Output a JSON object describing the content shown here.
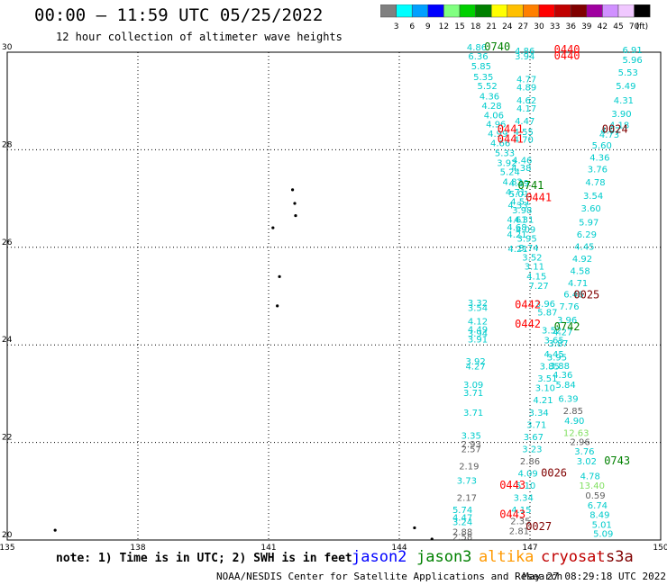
{
  "header": {
    "title": "00:00 – 11:59 UTC 05/25/2022",
    "subtitle": "12 hour collection of altimeter wave heights"
  },
  "colorbar": {
    "ticks": [
      "3",
      "6",
      "9",
      "12",
      "15",
      "18",
      "21",
      "24",
      "27",
      "30",
      "33",
      "36",
      "39",
      "42",
      "45",
      "70"
    ],
    "unit": "(ft)",
    "colors": [
      "#808080",
      "#00ffff",
      "#00a0ff",
      "#0000ff",
      "#80ff80",
      "#00d000",
      "#008000",
      "#ffff00",
      "#ffc000",
      "#ff8000",
      "#ff0000",
      "#c00000",
      "#800000",
      "#a000a0",
      "#d090ff",
      "#f0c8ff",
      "#000000"
    ]
  },
  "footer": {
    "note": "note:  1) Time is in UTC; 2) SWH is in feet",
    "legend": [
      {
        "name": "jason2",
        "color": "#0000ff"
      },
      {
        "name": "jason3",
        "color": "#008000"
      },
      {
        "name": "altika",
        "color": "#ff9900"
      },
      {
        "name": "cryosat",
        "color": "#c00000"
      },
      {
        "name": "s3a",
        "color": "#800000"
      }
    ],
    "credit": "NOAA/NESDIS Center for Satellite Applications and Research",
    "timestamp": "May 27 08:29:18 UTC 2022"
  },
  "chart_data": {
    "type": "scatter",
    "xlim": [
      135,
      150
    ],
    "ylim": [
      20,
      30
    ],
    "x_ticks": [
      "135",
      "138",
      "141",
      "144",
      "147",
      "150"
    ],
    "y_ticks": [
      "20",
      "22",
      "24",
      "26",
      "28",
      "30"
    ],
    "grid": true,
    "labels": [
      {
        "lon": 146.25,
        "lat": 30.04,
        "text": "0740",
        "c": "#008000"
      },
      {
        "lon": 147.85,
        "lat": 29.98,
        "text": "0440",
        "c": "#ff0000"
      },
      {
        "lon": 147.85,
        "lat": 29.85,
        "text": "0440",
        "c": "#ff0000"
      },
      {
        "lon": 146.55,
        "lat": 28.35,
        "text": "0441",
        "c": "#ff0000"
      },
      {
        "lon": 146.55,
        "lat": 28.15,
        "text": "0441",
        "c": "#ff0000"
      },
      {
        "lon": 148.95,
        "lat": 28.35,
        "text": "0024",
        "c": "#800000"
      },
      {
        "lon": 147.02,
        "lat": 27.2,
        "text": "0741",
        "c": "#008000"
      },
      {
        "lon": 147.2,
        "lat": 26.95,
        "text": "0441",
        "c": "#ff0000"
      },
      {
        "lon": 148.3,
        "lat": 24.95,
        "text": "0025",
        "c": "#800000"
      },
      {
        "lon": 146.95,
        "lat": 24.75,
        "text": "0442",
        "c": "#ff0000"
      },
      {
        "lon": 146.95,
        "lat": 24.35,
        "text": "0442",
        "c": "#ff0000"
      },
      {
        "lon": 147.85,
        "lat": 24.3,
        "text": "0742",
        "c": "#008000"
      },
      {
        "lon": 149.0,
        "lat": 21.55,
        "text": "0743",
        "c": "#008000"
      },
      {
        "lon": 147.55,
        "lat": 21.3,
        "text": "0026",
        "c": "#800000"
      },
      {
        "lon": 146.6,
        "lat": 21.05,
        "text": "0443",
        "c": "#ff0000"
      },
      {
        "lon": 146.6,
        "lat": 20.45,
        "text": "0443",
        "c": "#ff0000"
      },
      {
        "lon": 147.2,
        "lat": 20.2,
        "text": "0027",
        "c": "#800000"
      }
    ],
    "wave_heights": [
      {
        "lon": 145.78,
        "lat": 30.04,
        "v": "4.86",
        "c": "#00cccc"
      },
      {
        "lon": 145.81,
        "lat": 29.85,
        "v": "6.36",
        "c": "#00cccc"
      },
      {
        "lon": 145.88,
        "lat": 29.65,
        "v": "5.85",
        "c": "#00cccc"
      },
      {
        "lon": 145.93,
        "lat": 29.43,
        "v": "5.35",
        "c": "#00cccc"
      },
      {
        "lon": 146.02,
        "lat": 29.24,
        "v": "5.52",
        "c": "#00cccc"
      },
      {
        "lon": 146.07,
        "lat": 29.03,
        "v": "4.36",
        "c": "#00cccc"
      },
      {
        "lon": 146.12,
        "lat": 28.84,
        "v": "4.28",
        "c": "#00cccc"
      },
      {
        "lon": 146.17,
        "lat": 28.64,
        "v": "4.06",
        "c": "#00cccc"
      },
      {
        "lon": 146.22,
        "lat": 28.46,
        "v": "4.96",
        "c": "#00cccc"
      },
      {
        "lon": 146.26,
        "lat": 28.27,
        "v": "4.99",
        "c": "#00cccc"
      },
      {
        "lon": 146.32,
        "lat": 28.07,
        "v": "4.66",
        "c": "#00cccc"
      },
      {
        "lon": 146.42,
        "lat": 27.87,
        "v": "5.33",
        "c": "#00cccc"
      },
      {
        "lon": 146.47,
        "lat": 27.67,
        "v": "3.92",
        "c": "#00cccc"
      },
      {
        "lon": 146.54,
        "lat": 27.48,
        "v": "5.24",
        "c": "#00cccc"
      },
      {
        "lon": 146.6,
        "lat": 27.28,
        "v": "4.82",
        "c": "#00cccc"
      },
      {
        "lon": 146.67,
        "lat": 27.07,
        "v": "4.71",
        "c": "#00cccc"
      },
      {
        "lon": 146.78,
        "lat": 26.87,
        "v": "4.51",
        "c": "#00cccc"
      },
      {
        "lon": 146.82,
        "lat": 26.7,
        "v": "3.98",
        "c": "#00cccc"
      },
      {
        "lon": 146.86,
        "lat": 26.5,
        "v": "4.31",
        "c": "#00cccc"
      },
      {
        "lon": 146.9,
        "lat": 26.3,
        "v": "4.09",
        "c": "#00cccc"
      },
      {
        "lon": 146.93,
        "lat": 26.12,
        "v": "3.95",
        "c": "#00cccc"
      },
      {
        "lon": 146.97,
        "lat": 25.92,
        "v": "3.74",
        "c": "#00cccc"
      },
      {
        "lon": 147.05,
        "lat": 25.73,
        "v": "3.52",
        "c": "#00cccc"
      },
      {
        "lon": 147.1,
        "lat": 25.54,
        "v": "3.11",
        "c": "#00cccc"
      },
      {
        "lon": 147.15,
        "lat": 25.34,
        "v": "4.15",
        "c": "#00cccc"
      },
      {
        "lon": 147.2,
        "lat": 25.15,
        "v": "7.27",
        "c": "#00cccc"
      },
      {
        "lon": 147.35,
        "lat": 24.78,
        "v": "3.96",
        "c": "#00cccc"
      },
      {
        "lon": 147.4,
        "lat": 24.6,
        "v": "5.87",
        "c": "#00cccc"
      },
      {
        "lon": 147.5,
        "lat": 24.23,
        "v": "3.52",
        "c": "#00cccc"
      },
      {
        "lon": 147.55,
        "lat": 24.03,
        "v": "3.65",
        "c": "#00cccc"
      },
      {
        "lon": 147.62,
        "lat": 23.68,
        "v": "3.95",
        "c": "#00cccc"
      },
      {
        "lon": 147.68,
        "lat": 23.51,
        "v": "3.88",
        "c": "#00cccc"
      },
      {
        "lon": 147.75,
        "lat": 23.32,
        "v": "4.36",
        "c": "#00cccc"
      },
      {
        "lon": 147.82,
        "lat": 23.12,
        "v": "5.84",
        "c": "#00cccc"
      },
      {
        "lon": 147.88,
        "lat": 22.83,
        "v": "6.39",
        "c": "#00cccc"
      },
      {
        "lon": 147.99,
        "lat": 22.58,
        "v": "2.85",
        "c": "#606060"
      },
      {
        "lon": 148.02,
        "lat": 22.38,
        "v": "4.90",
        "c": "#00cccc"
      },
      {
        "lon": 148.06,
        "lat": 22.13,
        "v": "12.63",
        "c": "#80e060"
      },
      {
        "lon": 148.15,
        "lat": 21.95,
        "v": "2.96",
        "c": "#606060"
      },
      {
        "lon": 148.25,
        "lat": 21.75,
        "v": "3.76",
        "c": "#00cccc"
      },
      {
        "lon": 148.3,
        "lat": 21.55,
        "v": "3.02",
        "c": "#00cccc"
      },
      {
        "lon": 148.38,
        "lat": 21.25,
        "v": "4.78",
        "c": "#00cccc"
      },
      {
        "lon": 148.42,
        "lat": 21.05,
        "v": "13.40",
        "c": "#80e060"
      },
      {
        "lon": 148.5,
        "lat": 20.85,
        "v": "0.59",
        "c": "#606060"
      },
      {
        "lon": 148.55,
        "lat": 20.65,
        "v": "6.74",
        "c": "#00cccc"
      },
      {
        "lon": 148.6,
        "lat": 20.45,
        "v": "8.49",
        "c": "#00cccc"
      },
      {
        "lon": 148.65,
        "lat": 20.25,
        "v": "5.01",
        "c": "#00cccc"
      },
      {
        "lon": 148.68,
        "lat": 20.06,
        "v": "5.09",
        "c": "#00cccc"
      },
      {
        "lon": 149.35,
        "lat": 29.98,
        "v": "6.91",
        "c": "#00cccc"
      },
      {
        "lon": 149.35,
        "lat": 29.78,
        "v": "5.96",
        "c": "#00cccc"
      },
      {
        "lon": 149.25,
        "lat": 29.52,
        "v": "5.53",
        "c": "#00cccc"
      },
      {
        "lon": 149.2,
        "lat": 29.24,
        "v": "5.49",
        "c": "#00cccc"
      },
      {
        "lon": 149.15,
        "lat": 28.95,
        "v": "4.31",
        "c": "#00cccc"
      },
      {
        "lon": 149.1,
        "lat": 28.67,
        "v": "3.90",
        "c": "#00cccc"
      },
      {
        "lon": 149.05,
        "lat": 28.44,
        "v": "4.18",
        "c": "#00cccc"
      },
      {
        "lon": 148.85,
        "lat": 28.33,
        "v": "4.97",
        "c": "#00cccc"
      },
      {
        "lon": 148.82,
        "lat": 28.25,
        "v": "4.73",
        "c": "#00cccc"
      },
      {
        "lon": 148.65,
        "lat": 28.03,
        "v": "5.60",
        "c": "#00cccc"
      },
      {
        "lon": 148.6,
        "lat": 27.78,
        "v": "4.36",
        "c": "#00cccc"
      },
      {
        "lon": 148.55,
        "lat": 27.54,
        "v": "3.76",
        "c": "#00cccc"
      },
      {
        "lon": 148.5,
        "lat": 27.27,
        "v": "4.78",
        "c": "#00cccc"
      },
      {
        "lon": 148.45,
        "lat": 26.99,
        "v": "3.54",
        "c": "#00cccc"
      },
      {
        "lon": 148.4,
        "lat": 26.73,
        "v": "3.60",
        "c": "#00cccc"
      },
      {
        "lon": 148.35,
        "lat": 26.45,
        "v": "5.97",
        "c": "#00cccc"
      },
      {
        "lon": 148.3,
        "lat": 26.2,
        "v": "6.29",
        "c": "#00cccc"
      },
      {
        "lon": 148.25,
        "lat": 25.95,
        "v": "4.45",
        "c": "#00cccc"
      },
      {
        "lon": 148.2,
        "lat": 25.7,
        "v": "4.92",
        "c": "#00cccc"
      },
      {
        "lon": 148.15,
        "lat": 25.45,
        "v": "4.58",
        "c": "#00cccc"
      },
      {
        "lon": 148.1,
        "lat": 25.2,
        "v": "4.71",
        "c": "#00cccc"
      },
      {
        "lon": 148.0,
        "lat": 24.97,
        "v": "6.46",
        "c": "#00cccc"
      },
      {
        "lon": 147.9,
        "lat": 24.72,
        "v": "7.76",
        "c": "#00cccc"
      },
      {
        "lon": 147.85,
        "lat": 24.45,
        "v": "3.96",
        "c": "#00cccc"
      },
      {
        "lon": 147.75,
        "lat": 24.2,
        "v": "4.27",
        "c": "#00cccc"
      },
      {
        "lon": 147.65,
        "lat": 23.97,
        "v": "3.87",
        "c": "#00cccc"
      },
      {
        "lon": 147.55,
        "lat": 23.75,
        "v": "4.45",
        "c": "#00cccc"
      },
      {
        "lon": 147.45,
        "lat": 23.5,
        "v": "3.85",
        "c": "#00cccc"
      },
      {
        "lon": 147.4,
        "lat": 23.25,
        "v": "3.51",
        "c": "#00cccc"
      },
      {
        "lon": 147.35,
        "lat": 23.05,
        "v": "3.10",
        "c": "#00cccc"
      },
      {
        "lon": 147.3,
        "lat": 22.8,
        "v": "4.21",
        "c": "#00cccc"
      },
      {
        "lon": 147.2,
        "lat": 22.55,
        "v": "3.34",
        "c": "#00cccc"
      },
      {
        "lon": 147.15,
        "lat": 22.3,
        "v": "3.71",
        "c": "#00cccc"
      },
      {
        "lon": 147.08,
        "lat": 22.05,
        "v": "3.67",
        "c": "#00cccc"
      },
      {
        "lon": 147.05,
        "lat": 21.8,
        "v": "3.23",
        "c": "#00cccc"
      },
      {
        "lon": 147.0,
        "lat": 21.55,
        "v": "2.86",
        "c": "#606060"
      },
      {
        "lon": 146.95,
        "lat": 21.3,
        "v": "4.09",
        "c": "#00cccc"
      },
      {
        "lon": 146.9,
        "lat": 21.05,
        "v": "5.10",
        "c": "#00cccc"
      },
      {
        "lon": 146.85,
        "lat": 20.8,
        "v": "3.34",
        "c": "#00cccc"
      },
      {
        "lon": 146.8,
        "lat": 20.55,
        "v": "4.15",
        "c": "#00cccc"
      },
      {
        "lon": 146.78,
        "lat": 20.32,
        "v": "2.35",
        "c": "#606060"
      },
      {
        "lon": 146.75,
        "lat": 20.12,
        "v": "2.81",
        "c": "#606060"
      },
      {
        "lon": 146.88,
        "lat": 29.96,
        "v": "4.86",
        "c": "#00cccc"
      },
      {
        "lon": 146.88,
        "lat": 29.85,
        "v": "3.94",
        "c": "#00cccc"
      },
      {
        "lon": 146.92,
        "lat": 29.38,
        "v": "4.77",
        "c": "#00cccc"
      },
      {
        "lon": 146.92,
        "lat": 29.22,
        "v": "4.89",
        "c": "#00cccc"
      },
      {
        "lon": 146.92,
        "lat": 28.95,
        "v": "4.62",
        "c": "#00cccc"
      },
      {
        "lon": 146.92,
        "lat": 28.78,
        "v": "4.17",
        "c": "#00cccc"
      },
      {
        "lon": 146.88,
        "lat": 28.52,
        "v": "4.47",
        "c": "#00cccc"
      },
      {
        "lon": 146.85,
        "lat": 28.3,
        "v": "4.55",
        "c": "#00cccc"
      },
      {
        "lon": 146.85,
        "lat": 28.15,
        "v": "4.70",
        "c": "#00cccc"
      },
      {
        "lon": 146.82,
        "lat": 27.72,
        "v": "4.46",
        "c": "#00cccc"
      },
      {
        "lon": 146.8,
        "lat": 27.56,
        "v": "4.38",
        "c": "#00cccc"
      },
      {
        "lon": 146.75,
        "lat": 27.25,
        "v": "4.39",
        "c": "#00cccc"
      },
      {
        "lon": 146.75,
        "lat": 27.03,
        "v": "5.01",
        "c": "#00cccc"
      },
      {
        "lon": 146.72,
        "lat": 26.8,
        "v": "4.33",
        "c": "#00cccc"
      },
      {
        "lon": 146.7,
        "lat": 26.5,
        "v": "4.61",
        "c": "#00cccc"
      },
      {
        "lon": 146.7,
        "lat": 26.35,
        "v": "4.68",
        "c": "#00cccc"
      },
      {
        "lon": 146.7,
        "lat": 26.2,
        "v": "4.21",
        "c": "#00cccc"
      },
      {
        "lon": 146.72,
        "lat": 25.9,
        "v": "4.21",
        "c": "#00cccc"
      },
      {
        "lon": 145.8,
        "lat": 24.8,
        "v": "3.32",
        "c": "#00cccc"
      },
      {
        "lon": 145.8,
        "lat": 24.7,
        "v": "3.54",
        "c": "#00cccc"
      },
      {
        "lon": 145.8,
        "lat": 24.42,
        "v": "4.12",
        "c": "#00cccc"
      },
      {
        "lon": 145.8,
        "lat": 24.25,
        "v": "4.49",
        "c": "#00cccc"
      },
      {
        "lon": 145.8,
        "lat": 24.17,
        "v": "3.94",
        "c": "#00cccc"
      },
      {
        "lon": 145.8,
        "lat": 24.05,
        "v": "3.91",
        "c": "#00cccc"
      },
      {
        "lon": 145.75,
        "lat": 23.6,
        "v": "3.92",
        "c": "#00cccc"
      },
      {
        "lon": 145.75,
        "lat": 23.5,
        "v": "4.27",
        "c": "#00cccc"
      },
      {
        "lon": 145.7,
        "lat": 23.12,
        "v": "3.09",
        "c": "#00cccc"
      },
      {
        "lon": 145.7,
        "lat": 22.95,
        "v": "3.71",
        "c": "#00cccc"
      },
      {
        "lon": 145.7,
        "lat": 22.55,
        "v": "3.71",
        "c": "#00cccc"
      },
      {
        "lon": 145.65,
        "lat": 22.08,
        "v": "3.35",
        "c": "#00cccc"
      },
      {
        "lon": 145.65,
        "lat": 21.9,
        "v": "2.93",
        "c": "#606060"
      },
      {
        "lon": 145.65,
        "lat": 21.8,
        "v": "2.57",
        "c": "#606060"
      },
      {
        "lon": 145.6,
        "lat": 21.45,
        "v": "2.19",
        "c": "#606060"
      },
      {
        "lon": 145.55,
        "lat": 21.15,
        "v": "3.73",
        "c": "#00cccc"
      },
      {
        "lon": 145.55,
        "lat": 20.8,
        "v": "2.17",
        "c": "#606060"
      },
      {
        "lon": 145.45,
        "lat": 20.55,
        "v": "5.74",
        "c": "#00cccc"
      },
      {
        "lon": 145.45,
        "lat": 20.4,
        "v": "4.47",
        "c": "#00cccc"
      },
      {
        "lon": 145.45,
        "lat": 20.3,
        "v": "3.24",
        "c": "#00cccc"
      },
      {
        "lon": 145.45,
        "lat": 20.1,
        "v": "2.88",
        "c": "#606060"
      },
      {
        "lon": 145.45,
        "lat": 20.0,
        "v": "2.58",
        "c": "#606060"
      }
    ]
  }
}
